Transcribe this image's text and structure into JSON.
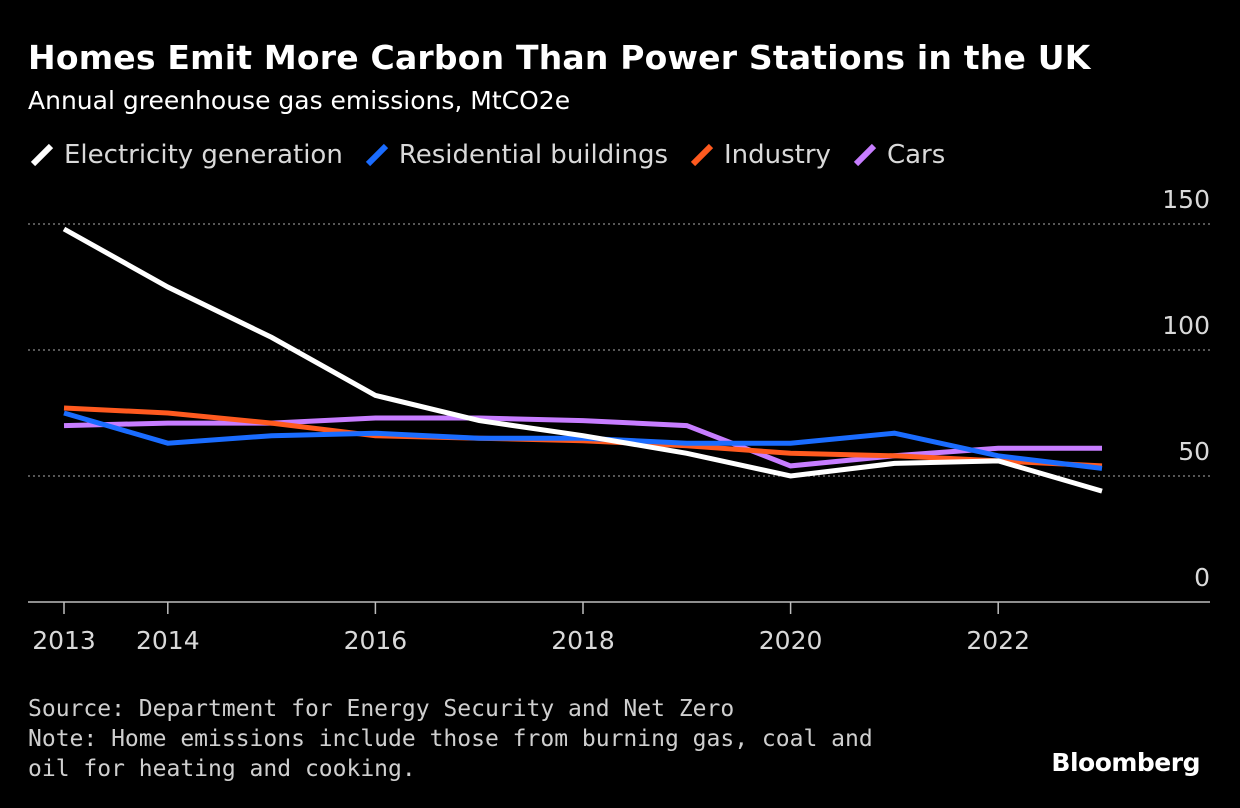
{
  "title": "Homes Emit More Carbon Than Power Stations in the UK",
  "subtitle": "Annual greenhouse gas emissions, MtCO2e",
  "source": "Source: Department for Energy Security and Net Zero",
  "note": "Note: Home emissions include those from burning gas, coal and oil for heating and cooking.",
  "brand": "Bloomberg",
  "chart_data": {
    "type": "line",
    "title": "Homes Emit More Carbon Than Power Stations in the UK",
    "subtitle": "Annual greenhouse gas emissions, MtCO2e",
    "xlabel": "",
    "ylabel": "",
    "x": [
      2013,
      2014,
      2015,
      2016,
      2017,
      2018,
      2019,
      2020,
      2021,
      2022,
      2023
    ],
    "x_ticks": [
      "2013",
      "2014",
      "2016",
      "2018",
      "2020",
      "2022"
    ],
    "y_ticks": [
      "0",
      "50",
      "100",
      "150"
    ],
    "ylim": [
      0,
      150
    ],
    "grid": "horizontal dotted",
    "legend_position": "top",
    "series": [
      {
        "name": "Electricity generation",
        "color": "#ffffff",
        "values": [
          148,
          125,
          105,
          82,
          72,
          66,
          59,
          50,
          55,
          56,
          44
        ]
      },
      {
        "name": "Residential buildings",
        "color": "#1a6cff",
        "values": [
          75,
          63,
          66,
          67,
          65,
          65,
          63,
          63,
          67,
          58,
          53
        ]
      },
      {
        "name": "Industry",
        "color": "#ff5a1f",
        "values": [
          77,
          75,
          71,
          66,
          65,
          64,
          62,
          59,
          58,
          56,
          54
        ]
      },
      {
        "name": "Cars",
        "color": "#c77dff",
        "values": [
          70,
          71,
          71,
          73,
          73,
          72,
          70,
          54,
          58,
          61,
          61
        ]
      }
    ]
  }
}
